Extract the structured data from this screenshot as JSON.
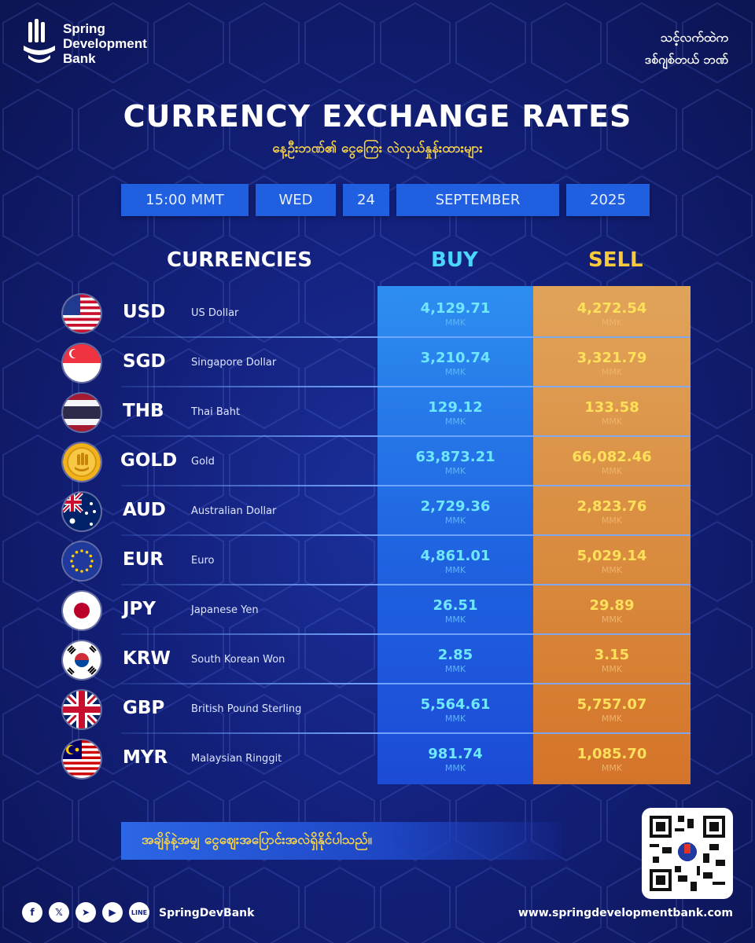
{
  "brand": {
    "line1": "Spring",
    "line2": "Development",
    "line3": "Bank"
  },
  "tagline": {
    "line1": "သင့်လက်ထဲက",
    "line2": "ဒစ်ဂျစ်တယ် ဘဏ်"
  },
  "title": "CURRENCY EXCHANGE RATES",
  "subtitle": "နေ့ဦးဘဏ်၏ ငွေကြေး လဲလှယ်နှုန်းထားများ",
  "date": {
    "time": "15:00 MMT",
    "weekday": "WED",
    "day": "24",
    "month": "SEPTEMBER",
    "year": "2025"
  },
  "columns": {
    "currencies": "CURRENCIES",
    "buy": "BUY",
    "sell": "SELL"
  },
  "colors": {
    "buy": "#6fe7ff",
    "sell": "#ffe05a",
    "banner_text": "#f7d44c"
  },
  "rates": [
    {
      "code": "USD",
      "name": "US Dollar",
      "buy": "4,129.71",
      "sell": "4,272.54",
      "unit": "MMK",
      "icon": "us-flag-icon"
    },
    {
      "code": "SGD",
      "name": "Singapore Dollar",
      "buy": "3,210.74",
      "sell": "3,321.79",
      "unit": "MMK",
      "icon": "singapore-flag-icon"
    },
    {
      "code": "THB",
      "name": "Thai Baht",
      "buy": "129.12",
      "sell": "133.58",
      "unit": "MMK",
      "icon": "thailand-flag-icon"
    },
    {
      "code": "GOLD",
      "name": "Gold",
      "buy": "63,873.21",
      "sell": "66,082.46",
      "unit": "MMK",
      "icon": "gold-coin-icon"
    },
    {
      "code": "AUD",
      "name": "Australian Dollar",
      "buy": "2,729.36",
      "sell": "2,823.76",
      "unit": "MMK",
      "icon": "australia-flag-icon"
    },
    {
      "code": "EUR",
      "name": "Euro",
      "buy": "4,861.01",
      "sell": "5,029.14",
      "unit": "MMK",
      "icon": "eu-flag-icon"
    },
    {
      "code": "JPY",
      "name": "Japanese Yen",
      "buy": "26.51",
      "sell": "29.89",
      "unit": "MMK",
      "icon": "japan-flag-icon"
    },
    {
      "code": "KRW",
      "name": "South Korean Won",
      "buy": "2.85",
      "sell": "3.15",
      "unit": "MMK",
      "icon": "korea-flag-icon"
    },
    {
      "code": "GBP",
      "name": "British Pound Sterling",
      "buy": "5,564.61",
      "sell": "5,757.07",
      "unit": "MMK",
      "icon": "uk-flag-icon"
    },
    {
      "code": "MYR",
      "name": "Malaysian Ringgit",
      "buy": "981.74",
      "sell": "1,085.70",
      "unit": "MMK",
      "icon": "malaysia-flag-icon"
    }
  ],
  "banner": "အချိန်နဲ့အမျှ ငွေဈေးအပြောင်းအလဲရှိနိုင်ပါသည်။",
  "footer": {
    "handle": "SpringDevBank",
    "website": "www.springdevelopmentbank.com",
    "socials": [
      "facebook-icon",
      "x-icon",
      "telegram-icon",
      "youtube-icon",
      "line-icon"
    ]
  }
}
